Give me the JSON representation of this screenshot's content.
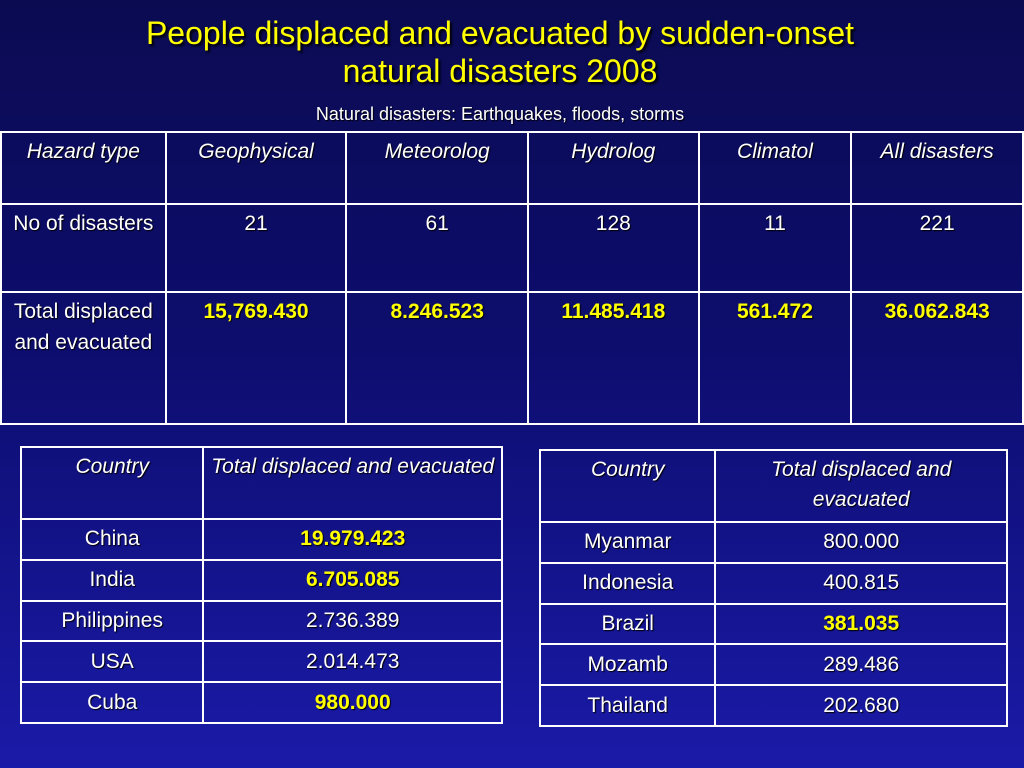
{
  "slide": {
    "title_line1": "People displaced and evacuated by sudden-onset",
    "title_line2": "natural disasters 2008",
    "subtitle": "Natural disasters: Earthquakes, floods, storms"
  },
  "hazard_table": {
    "headers": [
      "Hazard type",
      "Geophysical",
      "Meteorolog",
      "Hydrolog",
      "Climatol",
      "All disasters"
    ],
    "rows": [
      {
        "label": "No of disasters",
        "values": [
          "21",
          "61",
          "128",
          "11",
          "221"
        ]
      },
      {
        "label": "Total displaced and evacuated",
        "values": [
          "15,769.430",
          "8.246.523",
          "11.485.418",
          "561.472",
          "36.062.843"
        ]
      }
    ]
  },
  "country_table_left": {
    "headers": [
      "Country",
      "Total displaced and evacuated"
    ],
    "rows": [
      {
        "country": "China",
        "value": "19.979.423"
      },
      {
        "country": "India",
        "value": "6.705.085"
      },
      {
        "country": "Philippines",
        "value": "2.736.389"
      },
      {
        "country": "USA",
        "value": "2.014.473"
      },
      {
        "country": "Cuba",
        "value": "980.000"
      }
    ]
  },
  "country_table_right": {
    "headers": [
      "Country",
      "Total displaced and evacuated"
    ],
    "rows": [
      {
        "country": "Myanmar",
        "value": "800.000"
      },
      {
        "country": "Indonesia",
        "value": "400.815"
      },
      {
        "country": "Brazil",
        "value": "381.035"
      },
      {
        "country": "Mozamb",
        "value": "289.486"
      },
      {
        "country": "Thailand",
        "value": "202.680"
      }
    ]
  },
  "colors": {
    "title": "#ffff00",
    "highlight_value": "#ffff00",
    "text": "#ffffff",
    "background_top": "#0b0b52",
    "background_bottom": "#1a1aa8"
  }
}
